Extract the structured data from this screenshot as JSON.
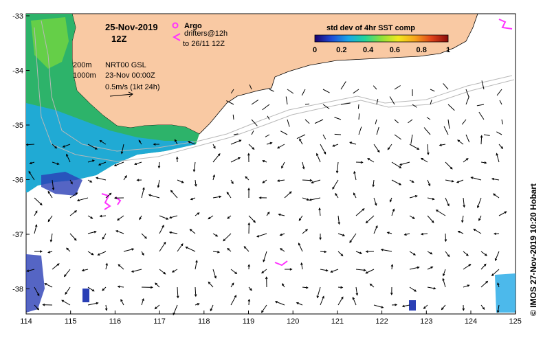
{
  "header": {
    "date": "25-Nov-2019",
    "time": "12Z"
  },
  "legend": {
    "argo_label": "Argo",
    "drifters_label": "drifters@12h",
    "drifters_sub": "to 26/11 12Z",
    "colorbar_title": "std dev of 4hr SST comp",
    "colorbar_ticks": [
      "0",
      "0.2",
      "0.4",
      "0.6",
      "0.8",
      "1"
    ],
    "colorbar_colors": [
      "#1a006e",
      "#1f4bd6",
      "#1ba6e8",
      "#22d49b",
      "#8fe13a",
      "#f2e81e",
      "#f7a51c",
      "#e0421a",
      "#8a0b0b"
    ]
  },
  "contours": {
    "depth_200": "200m",
    "depth_1000": "1000m"
  },
  "currents": {
    "product": "NRT00 GSL",
    "date": "23-Nov 00:00Z",
    "scale": "0.5m/s (1kt 24h)"
  },
  "credit": "© IMOS 27-Nov-2019 10:20 Hobart",
  "axes": {
    "x_ticks": [
      "114",
      "115",
      "116",
      "117",
      "118",
      "119",
      "120",
      "121",
      "122",
      "123",
      "124",
      "125"
    ],
    "y_ticks": [
      "-33",
      "-34",
      "-35",
      "-36",
      "-37",
      "-38"
    ]
  },
  "colors": {
    "land": "#f9c9a3",
    "argo": "#ff33ff",
    "ocean": "#ffffff"
  }
}
